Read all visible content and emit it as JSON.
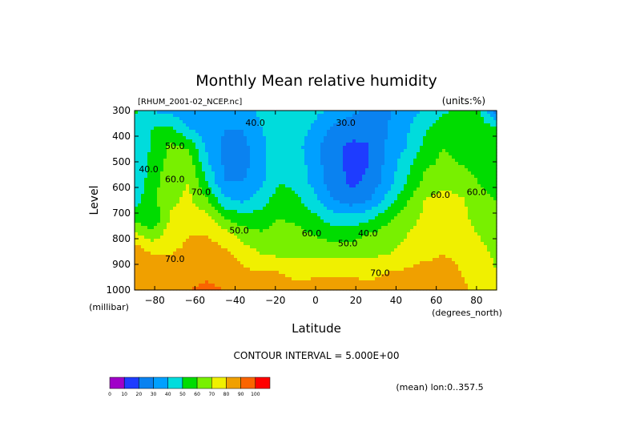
{
  "chart_data": {
    "type": "heatmap",
    "title": "Monthly Mean relative humidity",
    "dataset_label": "[RHUM_2001-02_NCEP.nc]",
    "units_label": "(units:%)",
    "xlabel": "Latitude",
    "x_units": "(degrees_north)",
    "ylabel": "Level",
    "y_units": "(millibar)",
    "xlim": [
      -90,
      90
    ],
    "ylim": [
      1000,
      300
    ],
    "x_ticks": [
      -80,
      -60,
      -40,
      -20,
      0,
      20,
      40,
      60,
      80
    ],
    "y_ticks": [
      300,
      400,
      500,
      600,
      700,
      800,
      900,
      1000
    ],
    "contour_interval_text": "CONTOUR INTERVAL = 5.000E+00",
    "mean_text": "(mean) lon:0..357.5",
    "contour_labels": [
      {
        "text": "40.0",
        "x": -30,
        "y": 360
      },
      {
        "text": "30.0",
        "x": 15,
        "y": 360
      },
      {
        "text": "50.0",
        "x": -70,
        "y": 450
      },
      {
        "text": "40.0",
        "x": -83,
        "y": 540
      },
      {
        "text": "60.0",
        "x": -70,
        "y": 580
      },
      {
        "text": "70.0",
        "x": -57,
        "y": 630
      },
      {
        "text": "50.0",
        "x": -38,
        "y": 780
      },
      {
        "text": "60.0",
        "x": -2,
        "y": 790
      },
      {
        "text": "40.0",
        "x": 26,
        "y": 790
      },
      {
        "text": "50.0",
        "x": 16,
        "y": 830
      },
      {
        "text": "70.0",
        "x": -70,
        "y": 890
      },
      {
        "text": "70.0",
        "x": 32,
        "y": 945
      },
      {
        "text": "60.0",
        "x": 62,
        "y": 640
      },
      {
        "text": "60.0",
        "x": 80,
        "y": 630
      }
    ],
    "colorbar": {
      "levels": [
        0,
        10,
        20,
        30,
        40,
        50,
        60,
        70,
        80,
        90,
        100
      ],
      "colors": [
        "#a000c8",
        "#1e3cff",
        "#0a82f0",
        "#00a0ff",
        "#00dcdc",
        "#00dc00",
        "#78f000",
        "#f0f000",
        "#f0a000",
        "#fa6400",
        "#ff0000"
      ]
    },
    "grid": [
      [
        52,
        40,
        36,
        33,
        32,
        34,
        33,
        43,
        48,
        46,
        42,
        38,
        32,
        28,
        29,
        34,
        42,
        48,
        52,
        55,
        22
      ],
      [
        44,
        50,
        52,
        40,
        33,
        30,
        30,
        40,
        45,
        44,
        38,
        28,
        24,
        22,
        30,
        38,
        48,
        56,
        55,
        55,
        52
      ],
      [
        40,
        52,
        62,
        58,
        38,
        28,
        27,
        37,
        46,
        43,
        32,
        22,
        18,
        20,
        32,
        40,
        52,
        60,
        57,
        55,
        52
      ],
      [
        40,
        54,
        64,
        66,
        42,
        28,
        27,
        36,
        48,
        45,
        34,
        22,
        18,
        20,
        34,
        46,
        58,
        62,
        60,
        58,
        55
      ],
      [
        42,
        56,
        66,
        70,
        50,
        30,
        30,
        38,
        50,
        47,
        36,
        24,
        18,
        22,
        36,
        50,
        62,
        68,
        64,
        60,
        56
      ],
      [
        46,
        58,
        68,
        72,
        62,
        42,
        38,
        45,
        56,
        52,
        42,
        30,
        24,
        30,
        44,
        58,
        70,
        74,
        72,
        64,
        60
      ],
      [
        58,
        50,
        72,
        76,
        74,
        60,
        54,
        55,
        60,
        58,
        52,
        45,
        44,
        48,
        58,
        66,
        72,
        76,
        74,
        66,
        62
      ],
      [
        74,
        66,
        76,
        80,
        80,
        76,
        66,
        62,
        64,
        63,
        60,
        56,
        56,
        62,
        66,
        70,
        74,
        76,
        76,
        70,
        65
      ],
      [
        88,
        80,
        80,
        82,
        84,
        82,
        76,
        70,
        68,
        68,
        68,
        68,
        68,
        68,
        70,
        72,
        76,
        80,
        78,
        74,
        68
      ],
      [
        90,
        86,
        84,
        86,
        88,
        86,
        82,
        80,
        80,
        78,
        78,
        78,
        78,
        78,
        80,
        82,
        86,
        84,
        80,
        76,
        70
      ],
      [
        90,
        88,
        86,
        90,
        92,
        90,
        86,
        84,
        84,
        82,
        84,
        84,
        84,
        82,
        84,
        86,
        88,
        86,
        82,
        78,
        72
      ]
    ]
  }
}
